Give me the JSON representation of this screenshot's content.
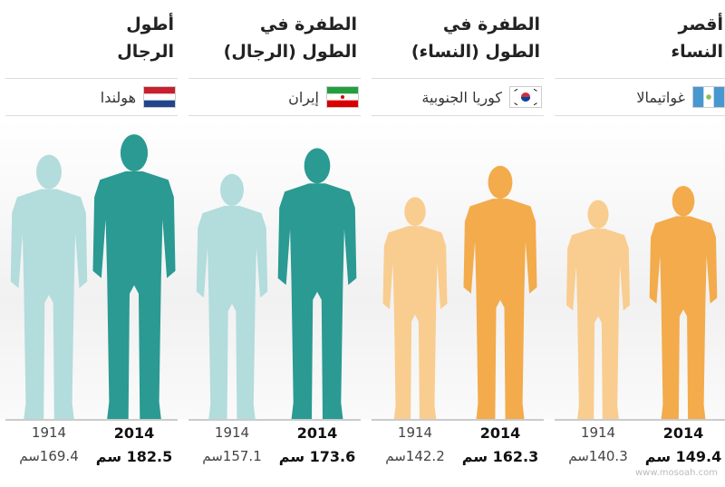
{
  "chart_data": [
    {
      "type": "pictogram",
      "title": "أطول الرجال",
      "country": "هولندا",
      "categories": [
        "1914",
        "2014"
      ],
      "values": [
        169.4,
        182.5
      ],
      "value_labels": [
        "169.4سم",
        "182.5 سم"
      ],
      "colors": [
        "#b3dcdc",
        "#2a9a93"
      ]
    },
    {
      "type": "pictogram",
      "title": "الطفرة في الطول (الرجال)",
      "country": "إيران",
      "categories": [
        "1914",
        "2014"
      ],
      "values": [
        157.1,
        173.6
      ],
      "value_labels": [
        "157.1سم",
        "173.6 سم"
      ],
      "colors": [
        "#b3dcdc",
        "#2a9a93"
      ]
    },
    {
      "type": "pictogram",
      "title": "الطفرة في الطول (النساء)",
      "country": "كوريا الجنوبية",
      "categories": [
        "1914",
        "2014"
      ],
      "values": [
        142.2,
        162.3
      ],
      "value_labels": [
        "142.2سم",
        "162.3 سم"
      ],
      "colors": [
        "#f9cd8f",
        "#f3ab4c"
      ]
    },
    {
      "type": "pictogram",
      "title": "أقصر النساء",
      "country": "غواتيمالا",
      "categories": [
        "1914",
        "2014"
      ],
      "values": [
        140.3,
        149.4
      ],
      "value_labels": [
        "140.3سم",
        "149.4 سم"
      ],
      "colors": [
        "#f9cd8f",
        "#f3ab4c"
      ]
    }
  ],
  "watermark": "www.mosoah.com"
}
